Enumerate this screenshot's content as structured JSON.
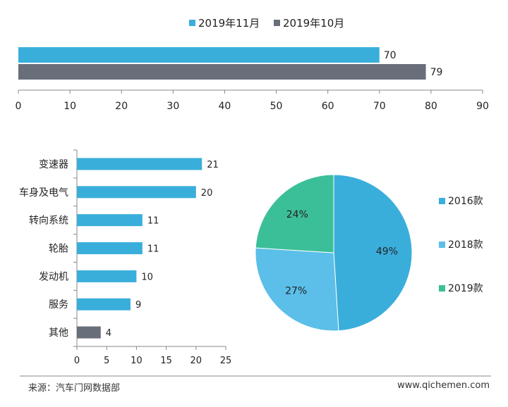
{
  "colors": {
    "nov": "#3aaedb",
    "oct": "#686e7a",
    "bar_blue": "#3aaedb",
    "bar_gray": "#686e7a",
    "pie_2016": "#3aaedb",
    "pie_2018": "#5bbfe9",
    "pie_2019": "#3bbf99",
    "axis": "#888888"
  },
  "chart_data": [
    {
      "type": "bar",
      "orientation": "horizontal",
      "series": [
        {
          "name": "2019年11月",
          "values": [
            70
          ],
          "value_labels": [
            "70"
          ]
        },
        {
          "name": "2019年10月",
          "values": [
            79
          ],
          "value_labels": [
            "79"
          ]
        }
      ],
      "legend": [
        "2019年11月",
        "2019年10月"
      ],
      "legend_position": "top",
      "xlim": [
        0,
        90
      ],
      "xticks": [
        "0",
        "10",
        "20",
        "30",
        "40",
        "50",
        "60",
        "70",
        "80",
        "90"
      ]
    },
    {
      "type": "bar",
      "orientation": "horizontal",
      "categories": [
        "变速器",
        "车身及电气",
        "转向系统",
        "轮胎",
        "发动机",
        "服务",
        "其他"
      ],
      "values": [
        21,
        20,
        11,
        11,
        10,
        9,
        4
      ],
      "value_labels": [
        "21",
        "20",
        "11",
        "11",
        "10",
        "9",
        "4"
      ],
      "xlim": [
        0,
        25
      ],
      "xticks": [
        "0",
        "5",
        "10",
        "15",
        "20",
        "25"
      ]
    },
    {
      "type": "pie",
      "labels": [
        "2016款",
        "2018款",
        "2019款"
      ],
      "values": [
        49,
        27,
        24
      ],
      "value_labels": [
        "49%",
        "27%",
        "24%"
      ],
      "legend_position": "right"
    }
  ],
  "footer": {
    "source": "来源：汽车门网数据部",
    "website": "www.qichemen.com"
  }
}
